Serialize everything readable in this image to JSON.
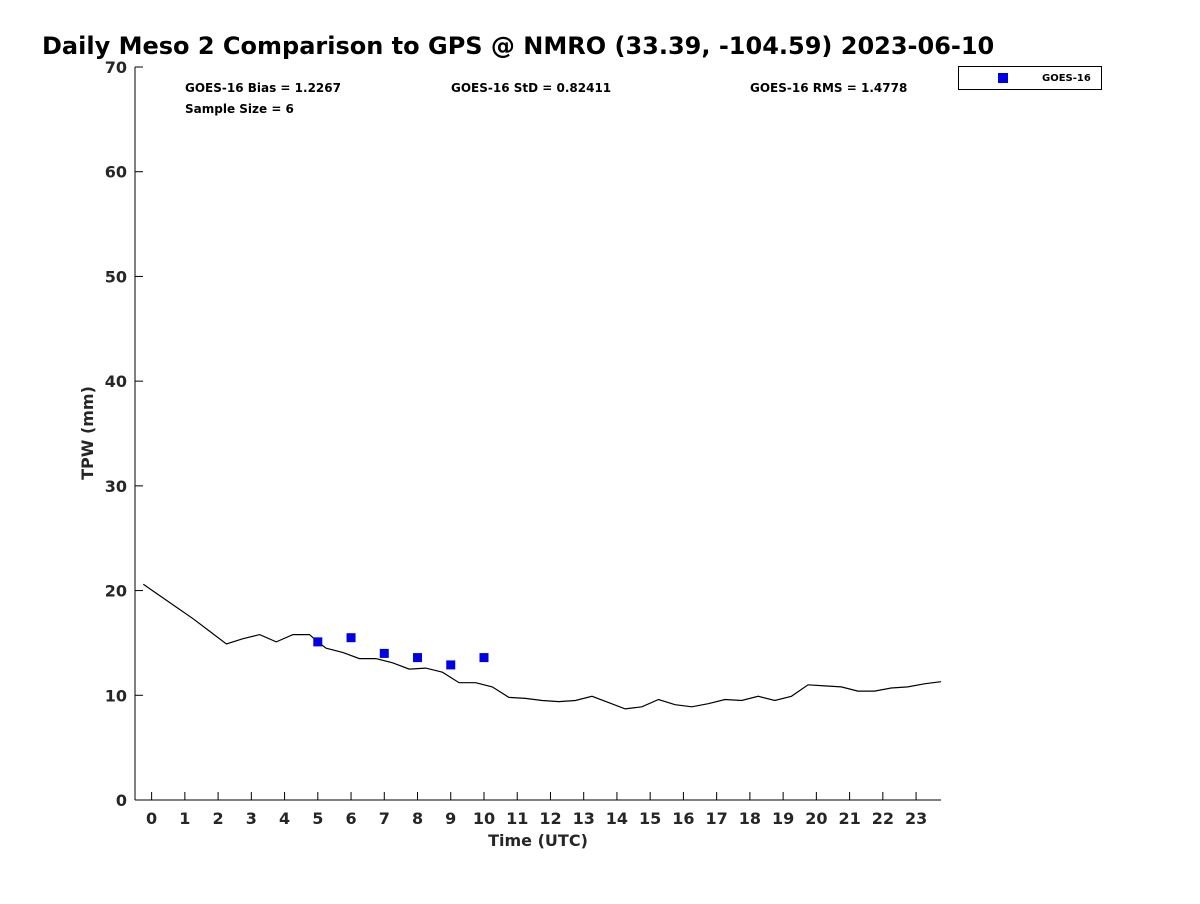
{
  "chart_data": {
    "type": "line",
    "title": "Daily Meso 2 Comparison to GPS @ NMRO (33.39, -104.59) 2023-06-10",
    "xlabel": "Time (UTC)",
    "ylabel": "TPW (mm)",
    "xlim": [
      -0.5,
      23.75
    ],
    "ylim": [
      0,
      70
    ],
    "xticks": [
      0,
      1,
      2,
      3,
      4,
      5,
      6,
      7,
      8,
      9,
      10,
      11,
      12,
      13,
      14,
      15,
      16,
      17,
      18,
      19,
      20,
      21,
      22,
      23
    ],
    "yticks": [
      0,
      10,
      20,
      30,
      40,
      50,
      60,
      70
    ],
    "grid": false,
    "legend_position": "top-right",
    "stats": [
      {
        "text": "GOES-16 Bias = 1.2267"
      },
      {
        "text": "GOES-16 StD = 0.82411"
      },
      {
        "text": "GOES-16 RMS = 1.4778"
      },
      {
        "text": "Sample Size = 6"
      }
    ],
    "series": [
      {
        "style": "line",
        "color": "#000000",
        "x": [
          -0.25,
          0.25,
          0.75,
          1.25,
          1.75,
          2.25,
          2.75,
          3.25,
          3.75,
          4.25,
          4.75,
          5.0,
          5.25,
          5.75,
          6.25,
          6.75,
          7.25,
          7.75,
          8.25,
          8.75,
          9.25,
          9.75,
          10.25,
          10.75,
          11.25,
          11.75,
          12.25,
          12.75,
          13.25,
          13.75,
          14.25,
          14.75,
          15.25,
          15.75,
          16.25,
          16.75,
          17.25,
          17.75,
          18.25,
          18.75,
          19.25,
          19.75,
          20.25,
          20.75,
          21.25,
          21.75,
          22.25,
          22.75,
          23.25,
          23.75
        ],
        "y": [
          20.6,
          19.5,
          18.4,
          17.3,
          16.1,
          14.9,
          15.4,
          15.8,
          15.1,
          15.8,
          15.8,
          15.1,
          14.5,
          14.1,
          13.5,
          13.5,
          13.1,
          12.5,
          12.6,
          12.2,
          11.2,
          11.2,
          10.8,
          9.8,
          9.7,
          9.5,
          9.4,
          9.5,
          9.9,
          9.3,
          8.7,
          8.9,
          9.6,
          9.1,
          8.9,
          9.2,
          9.6,
          9.5,
          9.9,
          9.5,
          9.9,
          11.0,
          10.9,
          10.8,
          10.4,
          10.4,
          10.7,
          10.8,
          11.1,
          11.3
        ]
      },
      {
        "name": "GOES-16",
        "style": "scatter",
        "marker": "square",
        "color": "#0000e6",
        "x": [
          5,
          6,
          7,
          8,
          9,
          10
        ],
        "y": [
          15.1,
          15.5,
          14.0,
          13.6,
          12.9,
          13.6
        ]
      }
    ]
  }
}
